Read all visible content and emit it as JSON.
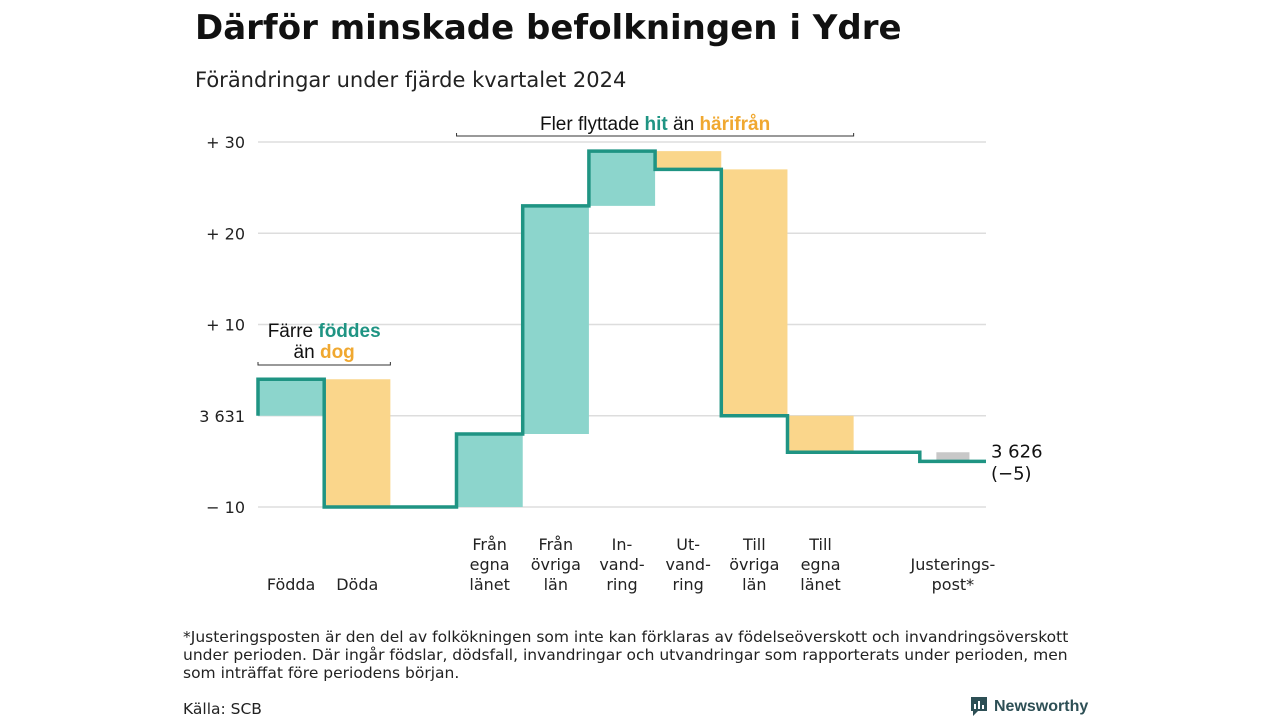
{
  "header": {
    "title": "Därför minskade befolkningen i Ydre",
    "subtitle": "Förändringar under fjärde kvartalet 2024"
  },
  "colors": {
    "positive_fill": "#8cd5cc",
    "negative_fill": "#fad68b",
    "line": "#1f9483",
    "adjustment_fill": "#c8c8c8",
    "accent_teal": "#1f9483",
    "accent_orange": "#f0a830",
    "grid": "#dddddd"
  },
  "annotations": {
    "births": {
      "line1_prefix": "Färre ",
      "line1_highlight": "föddes",
      "line2_prefix": "än ",
      "line2_highlight": "dog"
    },
    "migration": {
      "prefix": "Fler flyttade ",
      "highlight1": "hit",
      "middle": " än ",
      "highlight2": "härifrån"
    }
  },
  "chart_data": {
    "type": "waterfall",
    "start": {
      "label": "3 631",
      "value": 3631
    },
    "end": {
      "label": "3 626",
      "change_label": "(−5)",
      "value": 3626
    },
    "yticks": [
      {
        "label": "+ 30",
        "value": 30
      },
      {
        "label": "+ 20",
        "value": 20
      },
      {
        "label": "+ 10",
        "value": 10
      },
      {
        "label": "3 631",
        "value": 0
      },
      {
        "label": "− 10",
        "value": -10
      }
    ],
    "ylim": [
      -10,
      30
    ],
    "steps": [
      {
        "label": [
          "Födda"
        ],
        "change": 4,
        "kind": "positive"
      },
      {
        "label": [
          "Döda"
        ],
        "change": -14,
        "kind": "negative"
      },
      {
        "label": [],
        "change": 0,
        "kind": "gap"
      },
      {
        "label": [
          "Från",
          "egna",
          "länet"
        ],
        "change": 8,
        "kind": "positive"
      },
      {
        "label": [
          "Från",
          "övriga",
          "län"
        ],
        "change": 25,
        "kind": "positive"
      },
      {
        "label": [
          "In-",
          "vand-",
          "ring"
        ],
        "change": 6,
        "kind": "positive"
      },
      {
        "label": [
          "Ut-",
          "vand-",
          "ring"
        ],
        "change": -2,
        "kind": "negative"
      },
      {
        "label": [
          "Till",
          "övriga",
          "län"
        ],
        "change": -27,
        "kind": "negative"
      },
      {
        "label": [
          "Till",
          "egna",
          "länet"
        ],
        "change": -4,
        "kind": "negative"
      },
      {
        "label": [],
        "change": 0,
        "kind": "gap"
      },
      {
        "label": [
          "Justerings-",
          "post*"
        ],
        "change": -1,
        "kind": "adjustment"
      }
    ]
  },
  "footer": {
    "footnote": "*Justeringsposten är den del av folkökningen som inte kan förklaras av födelseöverskott och invandringsöverskott under perioden. Där ingår födslar, dödsfall, invandringar och utvandringar som rapporterats under perioden, men som inträffat före periodens början.",
    "source": "Källa: SCB",
    "logo_text": "Newsworthy"
  }
}
